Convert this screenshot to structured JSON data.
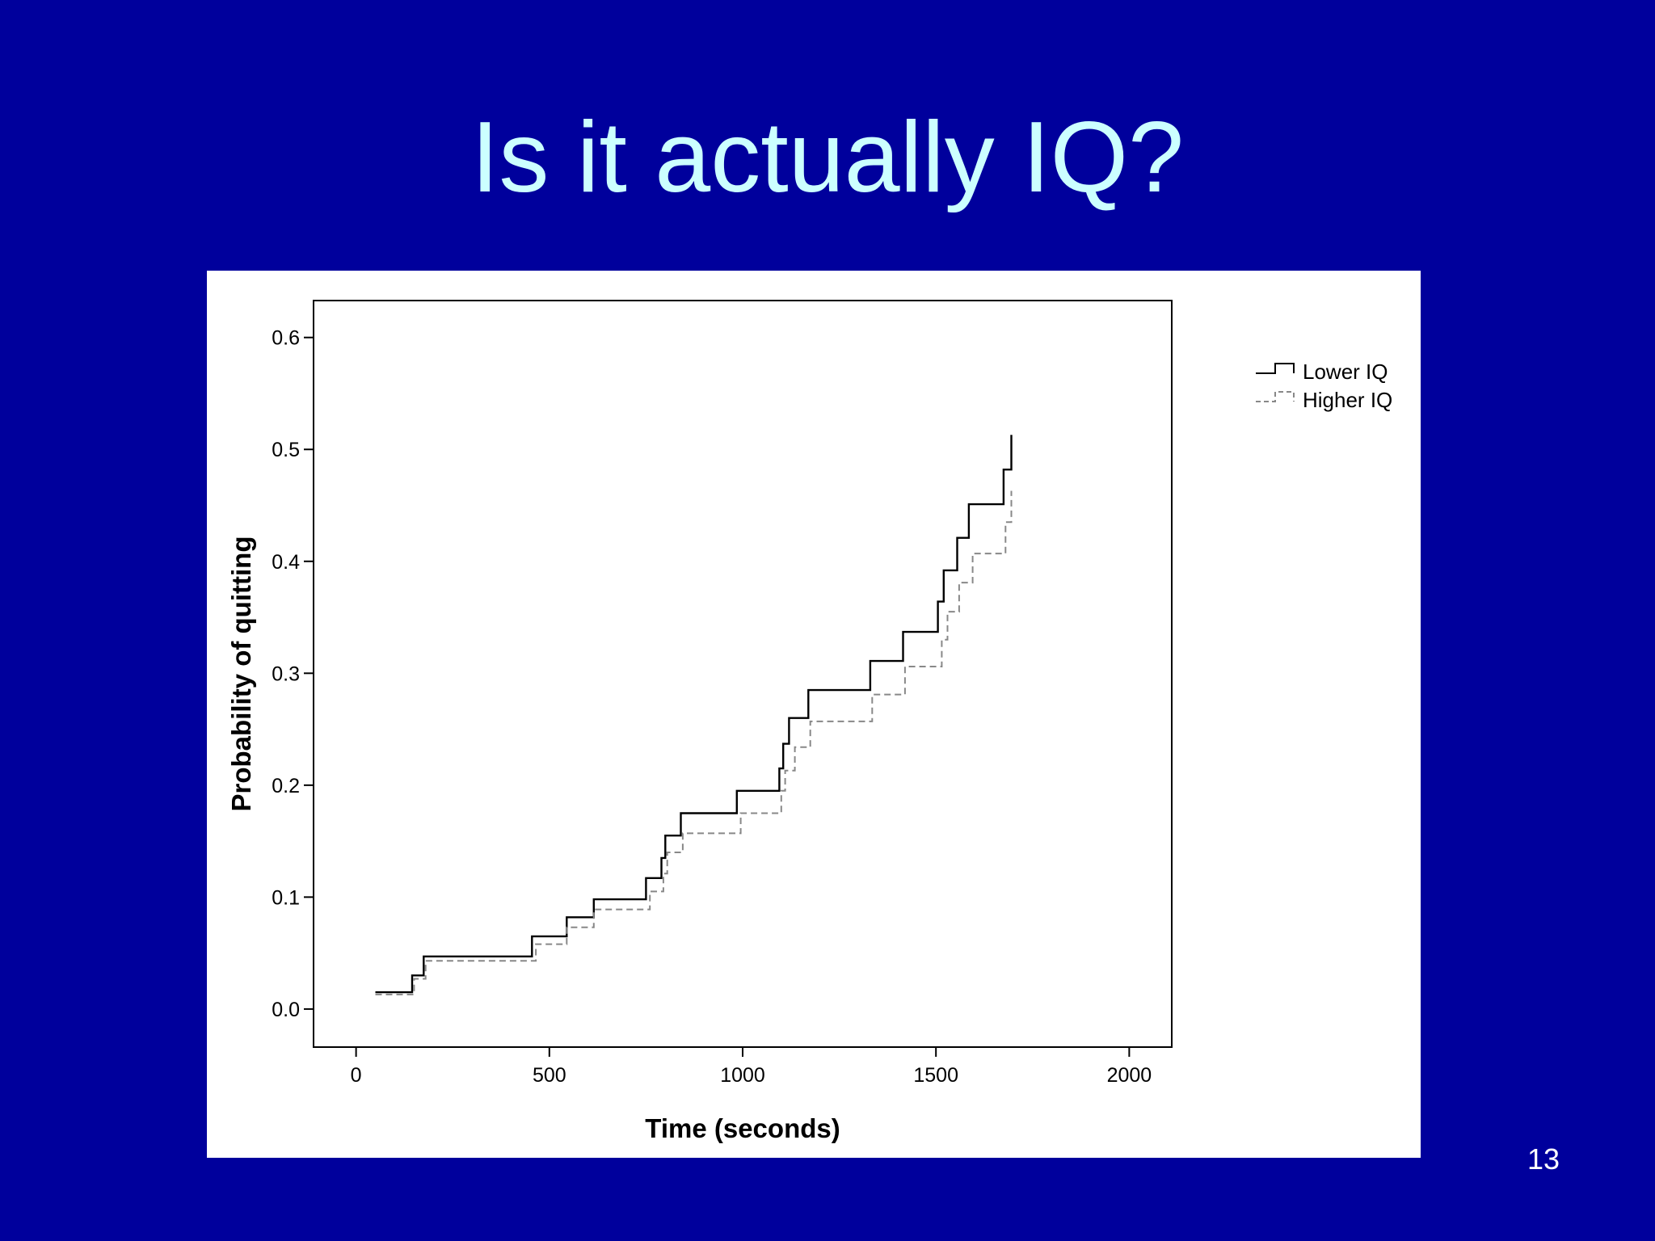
{
  "slide": {
    "title": "Is it actually IQ?",
    "page_number": "13",
    "background_color": "#00009c",
    "title_color": "#ccffff"
  },
  "chart_data": {
    "type": "line",
    "step": true,
    "xlabel": "Time (seconds)",
    "ylabel": "Probability of quitting",
    "xlim": [
      -110,
      2110
    ],
    "ylim": [
      -0.034,
      0.633
    ],
    "xticks": [
      0,
      500,
      1000,
      1500,
      2000
    ],
    "yticks": [
      0.0,
      0.1,
      0.2,
      0.3,
      0.4,
      0.5,
      0.6
    ],
    "xtick_labels": [
      "0",
      "500",
      "1000",
      "1500",
      "2000"
    ],
    "ytick_labels": [
      "0.0",
      "0.1",
      "0.2",
      "0.3",
      "0.4",
      "0.5",
      "0.6"
    ],
    "grid": false,
    "legend_position": "right-top",
    "series": [
      {
        "name": "Lower IQ",
        "style": "solid",
        "color": "#000000",
        "x": [
          50,
          145,
          175,
          455,
          545,
          615,
          750,
          790,
          800,
          840,
          985,
          1095,
          1105,
          1120,
          1170,
          1330,
          1415,
          1505,
          1520,
          1555,
          1585,
          1675,
          1690,
          1695
        ],
        "y": [
          0.015,
          0.03,
          0.047,
          0.065,
          0.082,
          0.098,
          0.117,
          0.135,
          0.155,
          0.175,
          0.195,
          0.215,
          0.237,
          0.26,
          0.285,
          0.311,
          0.337,
          0.364,
          0.392,
          0.421,
          0.451,
          0.482,
          0.482,
          0.513
        ]
      },
      {
        "name": "Higher IQ",
        "style": "dashed",
        "color": "#888888",
        "x": [
          50,
          150,
          180,
          465,
          545,
          615,
          760,
          795,
          805,
          845,
          995,
          1100,
          1110,
          1135,
          1175,
          1335,
          1420,
          1515,
          1530,
          1560,
          1595,
          1680,
          1690,
          1695
        ],
        "y": [
          0.013,
          0.027,
          0.043,
          0.058,
          0.073,
          0.089,
          0.105,
          0.121,
          0.14,
          0.157,
          0.175,
          0.195,
          0.213,
          0.234,
          0.257,
          0.281,
          0.306,
          0.33,
          0.355,
          0.381,
          0.407,
          0.435,
          0.435,
          0.463
        ]
      }
    ]
  }
}
